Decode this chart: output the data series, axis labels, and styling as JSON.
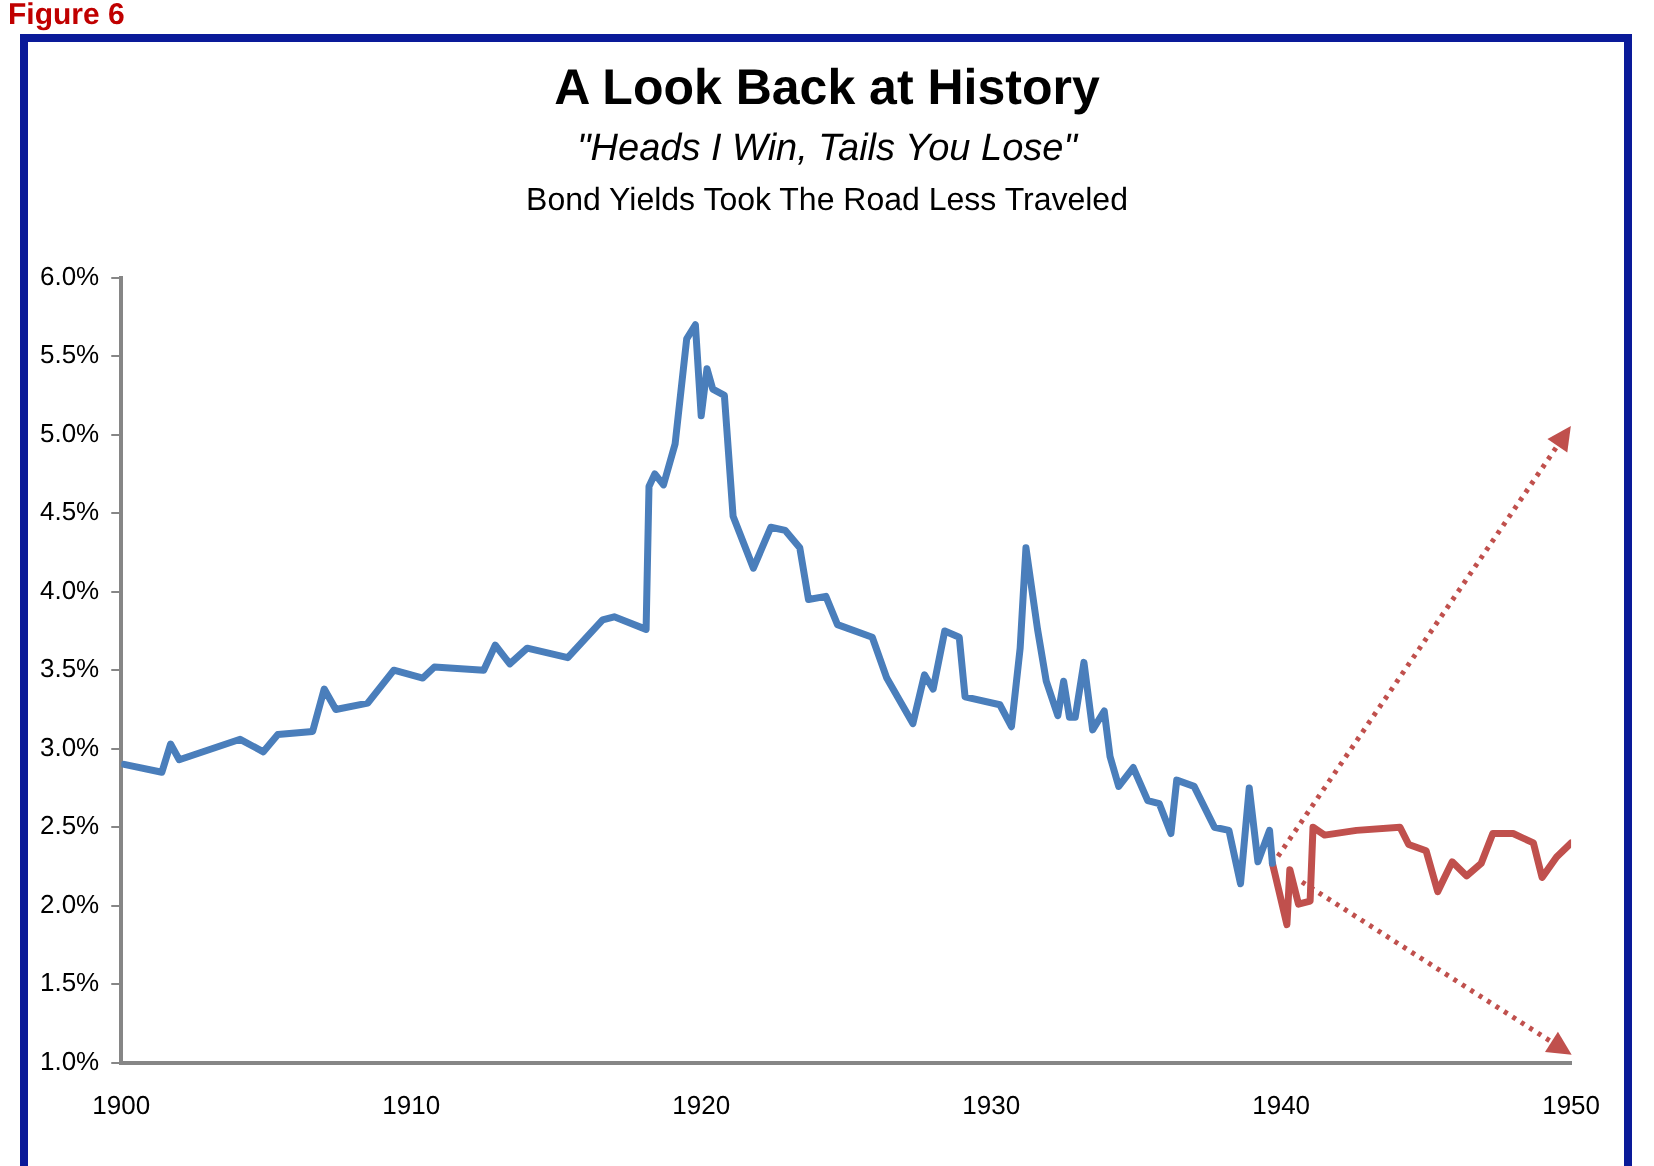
{
  "chart_data": {
    "type": "line",
    "title": "A Look Back at History",
    "subtitle": "\"Heads I Win, Tails You Lose\"",
    "annotations": [
      "Figure 6",
      "Bond Yields Took The Road Less Traveled"
    ],
    "xlim": [
      1900,
      1950
    ],
    "xticks": [
      1900,
      1910,
      1920,
      1930,
      1940,
      1950
    ],
    "ylim": [
      1.0,
      6.0
    ],
    "yticks": [
      {
        "value": 1.0,
        "label": "1.0%"
      },
      {
        "value": 1.5,
        "label": "1.5%"
      },
      {
        "value": 2.0,
        "label": "2.0%"
      },
      {
        "value": 2.5,
        "label": "2.5%"
      },
      {
        "value": 3.0,
        "label": "3.0%"
      },
      {
        "value": 3.5,
        "label": "3.5%"
      },
      {
        "value": 4.0,
        "label": "4.0%"
      },
      {
        "value": 4.5,
        "label": "4.5%"
      },
      {
        "value": 5.0,
        "label": "5.0%"
      },
      {
        "value": 5.5,
        "label": "5.5%"
      },
      {
        "value": 6.0,
        "label": "6.0%"
      }
    ],
    "grid": false,
    "legend": false,
    "marker": "none",
    "series": [
      {
        "color": "#4a7ebb",
        "line_style": "solid",
        "x": [
          1900.1,
          1901.4,
          1901.7,
          1902.0,
          1904.1,
          1904.9,
          1905.4,
          1906.6,
          1907.0,
          1907.4,
          1908.5,
          1909.4,
          1910.4,
          1910.8,
          1912.5,
          1912.9,
          1913.4,
          1914.0,
          1915.4,
          1916.6,
          1917.0,
          1918.1,
          1918.2,
          1918.4,
          1918.7,
          1919.1,
          1919.5,
          1919.8,
          1920.0,
          1920.2,
          1920.4,
          1920.8,
          1921.1,
          1921.8,
          1922.4,
          1922.9,
          1923.4,
          1923.7,
          1924.3,
          1924.7,
          1925.9,
          1926.4,
          1927.3,
          1927.7,
          1928.0,
          1928.4,
          1928.9,
          1929.1,
          1930.3,
          1930.7,
          1931.0,
          1931.2,
          1931.6,
          1931.9,
          1932.3,
          1932.5,
          1932.7,
          1932.9,
          1933.2,
          1933.5,
          1933.9,
          1934.1,
          1934.4,
          1934.9,
          1935.4,
          1935.8,
          1936.2,
          1936.4,
          1937.0,
          1937.7,
          1938.2,
          1938.6,
          1938.9,
          1939.2,
          1939.6,
          1939.7
        ],
        "values": [
          2.9,
          2.85,
          3.03,
          2.93,
          3.06,
          2.98,
          3.09,
          3.11,
          3.38,
          3.25,
          3.29,
          3.5,
          3.45,
          3.52,
          3.5,
          3.66,
          3.54,
          3.64,
          3.58,
          3.82,
          3.84,
          3.76,
          4.67,
          4.75,
          4.68,
          4.94,
          5.61,
          5.7,
          5.12,
          5.42,
          5.29,
          5.25,
          4.48,
          4.15,
          4.41,
          4.39,
          4.28,
          3.95,
          3.97,
          3.79,
          3.71,
          3.45,
          3.16,
          3.47,
          3.38,
          3.75,
          3.71,
          3.33,
          3.28,
          3.14,
          3.64,
          4.28,
          3.76,
          3.43,
          3.21,
          3.43,
          3.2,
          3.2,
          3.55,
          3.12,
          3.24,
          2.95,
          2.76,
          2.88,
          2.67,
          2.65,
          2.46,
          2.8,
          2.76,
          2.5,
          2.48,
          2.14,
          2.75,
          2.28,
          2.48,
          2.27
        ]
      },
      {
        "color": "#c0504d",
        "line_style": "solid",
        "x": [
          1939.7,
          1940.2,
          1940.3,
          1940.6,
          1941.0,
          1941.1,
          1941.5,
          1942.6,
          1944.1,
          1944.4,
          1945.0,
          1945.4,
          1945.9,
          1946.4,
          1946.9,
          1947.3,
          1948.0,
          1948.7,
          1949.0,
          1949.5,
          1950.0
        ],
        "values": [
          2.27,
          1.88,
          2.23,
          2.01,
          2.03,
          2.5,
          2.45,
          2.48,
          2.5,
          2.39,
          2.35,
          2.09,
          2.28,
          2.19,
          2.27,
          2.46,
          2.46,
          2.4,
          2.18,
          2.31,
          2.4
        ]
      }
    ]
  }
}
